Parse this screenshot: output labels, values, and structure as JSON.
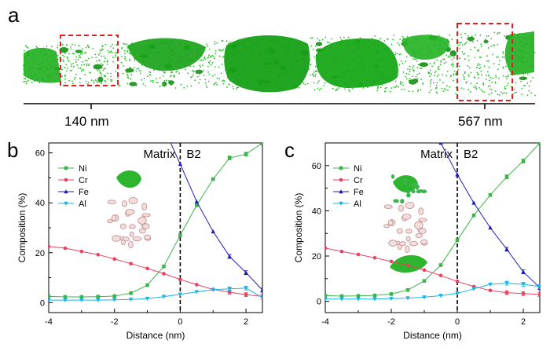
{
  "panel_a": {
    "letter": "a",
    "scale_labels": [
      "140 nm",
      "567 nm"
    ],
    "colors": {
      "atoms": "#22c222",
      "precipitate": "#1fae1f",
      "roi_box": "#e02020"
    }
  },
  "chart_data": [
    {
      "panel_letter": "b",
      "type": "line",
      "xlabel": "Distance (nm)",
      "ylabel": "Composition (%)",
      "xlim": [
        -4,
        2.5
      ],
      "ylim": [
        -4,
        64
      ],
      "xticks": [
        -4,
        -2,
        0,
        2
      ],
      "yticks": [
        0,
        20,
        40,
        60
      ],
      "grid": false,
      "legend_position": "upper-left",
      "region_labels": [
        "Matrix",
        "B2"
      ],
      "interface_x": 0,
      "series": [
        {
          "name": "Ni",
          "color": "#3cb44b",
          "marker": "square",
          "x": [
            -4,
            -3.5,
            -3,
            -2.5,
            -2,
            -1.5,
            -1,
            -0.5,
            0,
            0.5,
            1,
            1.5,
            2,
            2.5
          ],
          "y": [
            2.5,
            2.3,
            2.3,
            2.4,
            2.6,
            3.8,
            7,
            14.5,
            27,
            39,
            49.5,
            58,
            59.5,
            64
          ]
        },
        {
          "name": "Cr",
          "color": "#e8405f",
          "marker": "circle",
          "x": [
            -4,
            -3.5,
            -3,
            -2.5,
            -2,
            -1.5,
            -1,
            -0.5,
            0,
            0.5,
            1,
            1.5,
            2,
            2.5
          ],
          "y": [
            22.5,
            21.8,
            20.5,
            19.2,
            17.5,
            15.6,
            13.7,
            11.6,
            9.3,
            7.2,
            5.3,
            4.2,
            3.2,
            2.5
          ]
        },
        {
          "name": "Fe",
          "color": "#1f1fae",
          "marker": "triangle",
          "x": [
            -0.5,
            0,
            0.5,
            1,
            1.5,
            2,
            2.5
          ],
          "y": [
            70,
            55.5,
            40.5,
            28.5,
            18.5,
            12,
            5
          ]
        },
        {
          "name": "Al",
          "color": "#1ab3e6",
          "marker": "inv-triangle",
          "x": [
            -4,
            -3.5,
            -3,
            -2.5,
            -2,
            -1.5,
            -1,
            -0.5,
            0,
            0.5,
            1,
            1.5,
            2,
            2.5
          ],
          "y": [
            1,
            1,
            1,
            1,
            1.1,
            1.3,
            1.6,
            2.4,
            3.3,
            4.3,
            5.2,
            5.5,
            5.8,
            2
          ]
        }
      ]
    },
    {
      "panel_letter": "c",
      "type": "line",
      "xlabel": "Distance (nm)",
      "ylabel": "Composition (%)",
      "xlim": [
        -4,
        2.5
      ],
      "ylim": [
        -5,
        70
      ],
      "xticks": [
        -4,
        -2,
        0,
        2
      ],
      "yticks": [
        0,
        20,
        40,
        60
      ],
      "grid": false,
      "legend_position": "upper-left",
      "region_labels": [
        "Matrix",
        "B2"
      ],
      "interface_x": 0,
      "series": [
        {
          "name": "Ni",
          "color": "#3cb44b",
          "marker": "square",
          "x": [
            -4,
            -3.5,
            -3,
            -2.5,
            -2,
            -1.5,
            -1,
            -0.5,
            0,
            0.5,
            1,
            1.5,
            2,
            2.5
          ],
          "y": [
            2.5,
            2.3,
            2.4,
            2.6,
            3.2,
            5,
            9,
            16,
            27,
            38,
            47,
            55,
            62,
            70
          ]
        },
        {
          "name": "Cr",
          "color": "#e8405f",
          "marker": "circle",
          "x": [
            -4,
            -3.5,
            -3,
            -2.5,
            -2,
            -1.5,
            -1,
            -0.5,
            0,
            0.5,
            1,
            1.5,
            2,
            2.5
          ],
          "y": [
            23.5,
            22,
            20.7,
            19.2,
            17.6,
            15.8,
            13.8,
            11.4,
            8.8,
            6.5,
            4.8,
            3.8,
            3.4,
            3
          ]
        },
        {
          "name": "Fe",
          "color": "#1f1fae",
          "marker": "triangle",
          "x": [
            -0.5,
            0,
            0.5,
            1,
            1.5,
            2,
            2.5
          ],
          "y": [
            70,
            56,
            43.5,
            32.5,
            23,
            13,
            6
          ]
        },
        {
          "name": "Al",
          "color": "#1ab3e6",
          "marker": "inv-triangle",
          "x": [
            -4,
            -3.5,
            -3,
            -2.5,
            -2,
            -1.5,
            -1,
            -0.5,
            0,
            0.5,
            1,
            1.5,
            2,
            2.5
          ],
          "y": [
            1,
            1,
            1,
            1,
            1.2,
            1.4,
            1.8,
            2.5,
            3.5,
            5.5,
            7.5,
            8,
            7.5,
            6.5
          ]
        }
      ]
    }
  ]
}
